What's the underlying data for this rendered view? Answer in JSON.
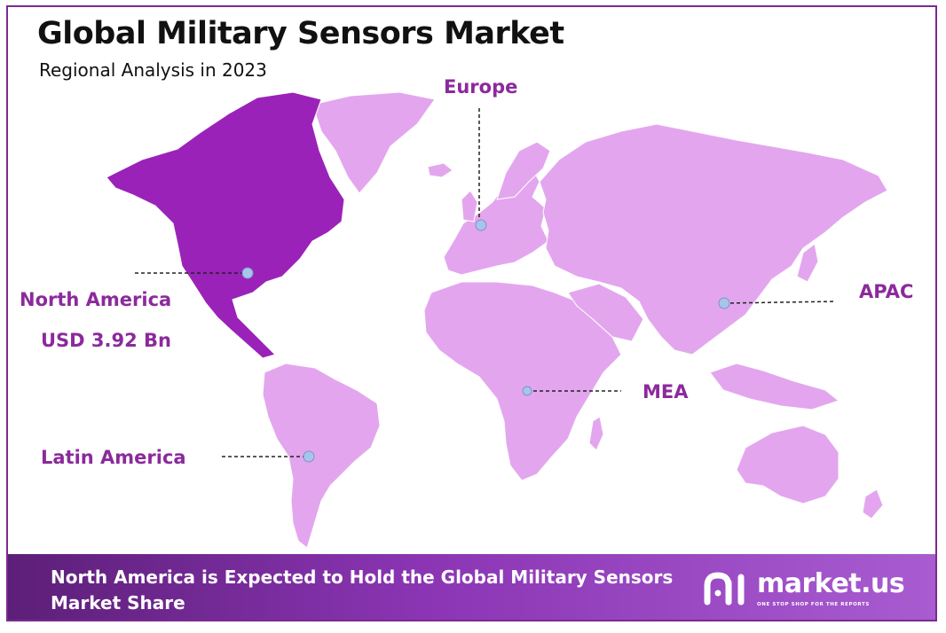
{
  "header": {
    "title": "Global Military Sensors Market",
    "subtitle": "Regional Analysis in 2023"
  },
  "colors": {
    "highlight_region": "#9b22b8",
    "other_regions": "#e3a6ee",
    "label": "#8b2a9c",
    "border": "#7b2a90",
    "marker": "#a9c4ec"
  },
  "map": {
    "highlighted_region": "North America",
    "regions": [
      {
        "id": "north-america",
        "label": "North America",
        "value": "USD 3.92 Bn"
      },
      {
        "id": "europe",
        "label": "Europe"
      },
      {
        "id": "apac",
        "label": "APAC"
      },
      {
        "id": "mea",
        "label": "MEA"
      },
      {
        "id": "latin-america",
        "label": "Latin America"
      }
    ]
  },
  "footer": {
    "headline": "North America is Expected to Hold the Global Military Sensors Market Share",
    "brand": "market.us",
    "tagline": "ONE STOP SHOP FOR THE REPORTS",
    "brand_icon": "market-us-logo-icon"
  }
}
